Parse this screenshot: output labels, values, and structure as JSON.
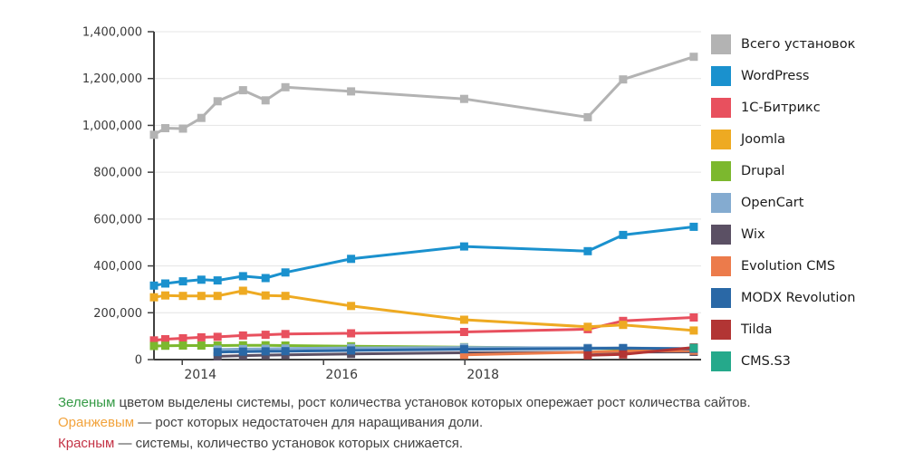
{
  "chart_data": {
    "type": "line",
    "title": "",
    "grid": true,
    "legend_position": "right",
    "x_axis": {
      "ticks": [
        2014,
        2016,
        2018
      ],
      "labels": [
        "2014",
        "2016",
        "2018"
      ],
      "min_year": 2013.6,
      "max_year": 2021.3
    },
    "y_axis": {
      "min": 0,
      "max": 1400000,
      "step": 200000,
      "tick_labels": [
        "0",
        "200,000",
        "400,000",
        "600,000",
        "800,000",
        "1,000,000",
        "1,200,000",
        "1,400,000"
      ]
    },
    "x_years_note": "shared survey dates as fractional years",
    "series": [
      {
        "name": "Всего установок",
        "color": "#b3b3b3",
        "x": [
          2013.6,
          2013.76,
          2014.01,
          2014.27,
          2014.5,
          2014.86,
          2015.18,
          2015.46,
          2016.39,
          2017.99,
          2019.74,
          2020.24,
          2021.24
        ],
        "values": [
          960000,
          988000,
          986000,
          1032000,
          1103000,
          1150000,
          1107000,
          1163000,
          1145000,
          1113000,
          1035000,
          1196000,
          1293000
        ]
      },
      {
        "name": "WordPress",
        "color": "#1a91ce",
        "x": [
          2013.6,
          2013.76,
          2014.01,
          2014.27,
          2014.5,
          2014.86,
          2015.18,
          2015.46,
          2016.39,
          2017.99,
          2019.74,
          2020.24,
          2021.24
        ],
        "values": [
          316000,
          325000,
          334000,
          341000,
          338000,
          356000,
          348000,
          372000,
          430000,
          483000,
          463000,
          532000,
          567000
        ]
      },
      {
        "name": "1С-Битрикс",
        "color": "#e8505e",
        "x": [
          2013.6,
          2013.76,
          2014.01,
          2014.27,
          2014.5,
          2014.86,
          2015.18,
          2015.46,
          2016.39,
          2017.99,
          2019.74,
          2020.24,
          2021.24
        ],
        "values": [
          82000,
          87000,
          91000,
          95000,
          97000,
          103000,
          106000,
          109000,
          112000,
          118000,
          130000,
          165000,
          180000
        ]
      },
      {
        "name": "Joomla",
        "color": "#eeaa22",
        "x": [
          2013.6,
          2013.76,
          2014.01,
          2014.27,
          2014.5,
          2014.86,
          2015.18,
          2015.46,
          2016.39,
          2017.99,
          2019.74,
          2020.24,
          2021.24
        ],
        "values": [
          266000,
          274000,
          272000,
          272000,
          272000,
          294000,
          274000,
          272000,
          229000,
          170000,
          140000,
          148000,
          124000
        ]
      },
      {
        "name": "Drupal",
        "color": "#7cb82e",
        "x": [
          2013.6,
          2013.76,
          2014.01,
          2014.27,
          2014.5,
          2014.86,
          2015.18,
          2015.46,
          2016.39,
          2017.99,
          2019.74,
          2020.24,
          2021.24
        ],
        "values": [
          58000,
          59000,
          60000,
          60000,
          60000,
          61000,
          61000,
          60000,
          57000,
          53000,
          48000,
          46000,
          44000
        ]
      },
      {
        "name": "OpenCart",
        "color": "#84abd0",
        "x": [
          2014.5,
          2014.86,
          2015.18,
          2015.46,
          2016.39,
          2017.99,
          2019.74,
          2020.24,
          2021.24
        ],
        "values": [
          43000,
          45000,
          46000,
          47000,
          50000,
          52000,
          50000,
          49000,
          47000
        ]
      },
      {
        "name": "Wix",
        "color": "#5b5064",
        "x": [
          2014.5,
          2014.86,
          2015.18,
          2015.46,
          2016.39,
          2017.99,
          2019.74,
          2020.24,
          2021.24
        ],
        "values": [
          14000,
          17000,
          19000,
          20000,
          24000,
          29000,
          31000,
          32000,
          33000
        ]
      },
      {
        "name": "Evolution CMS",
        "color": "#ec7b4b",
        "x": [
          2017.99,
          2019.74,
          2020.24,
          2021.24
        ],
        "values": [
          20000,
          32000,
          36000,
          38000
        ]
      },
      {
        "name": "MODX Revolution",
        "color": "#2a68a6",
        "x": [
          2014.5,
          2014.86,
          2015.18,
          2015.46,
          2016.39,
          2017.99,
          2019.74,
          2020.24,
          2021.24
        ],
        "values": [
          32000,
          34000,
          35000,
          36000,
          39000,
          44000,
          47000,
          49000,
          46000
        ]
      },
      {
        "name": "Tilda",
        "color": "#b23534",
        "x": [
          2019.74,
          2020.24,
          2021.24
        ],
        "values": [
          18000,
          22000,
          52000
        ]
      },
      {
        "name": "CMS.S3",
        "color": "#25a98b",
        "x": [
          2021.24
        ],
        "values": [
          50000
        ]
      }
    ]
  },
  "footer": {
    "lines": [
      {
        "lead": "Зеленым",
        "color": "#349a45",
        "rest": " цветом выделены системы, рост количества установок которых опережает рост количества сайтов."
      },
      {
        "lead": "Оранжевым",
        "color": "#f2a33c",
        "rest": " — рост которых недостаточен для наращивания доли."
      },
      {
        "lead": "Красным",
        "color": "#c43346",
        "rest": " — системы, количество установок которых снижается."
      }
    ]
  }
}
